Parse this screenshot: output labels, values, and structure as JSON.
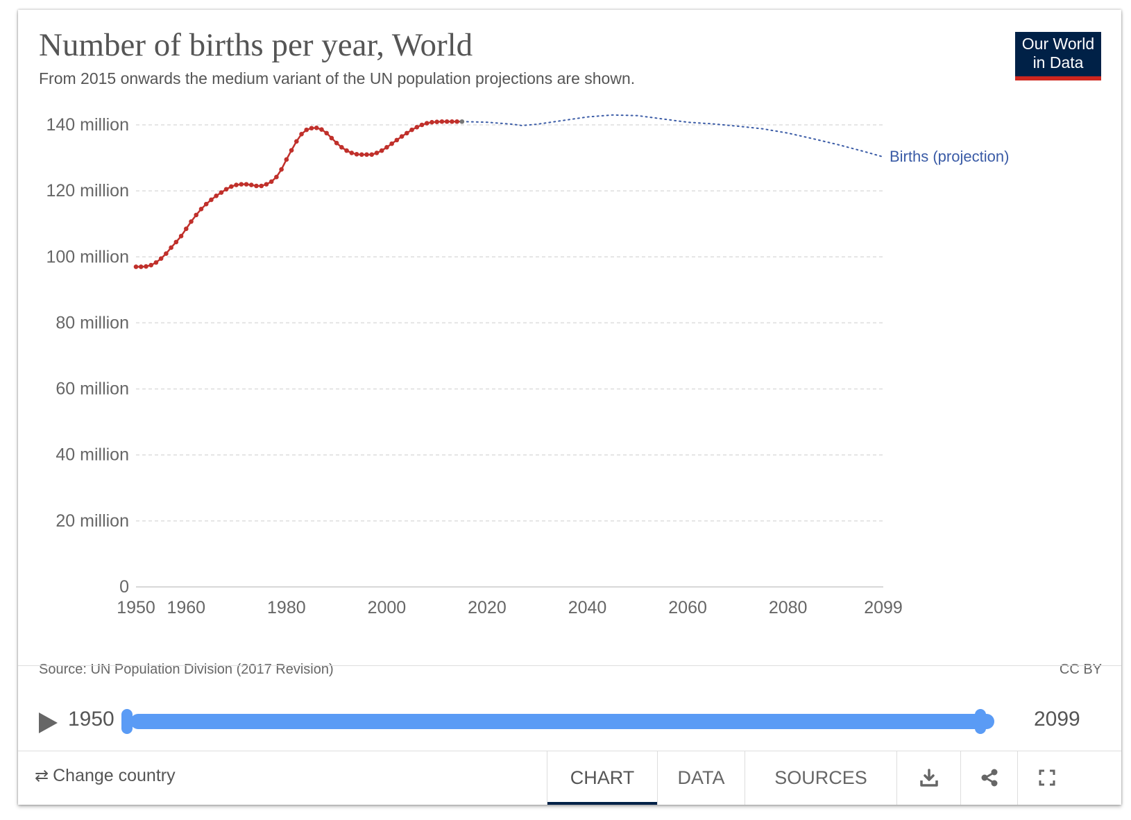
{
  "header": {
    "title": "Number of births per year, World",
    "subtitle": "From 2015 onwards the medium variant of the UN population projections are shown.",
    "logo_text": "Our World\nin Data"
  },
  "footer": {
    "source": "Source: UN Population Division (2017 Revision)",
    "license": "CC BY"
  },
  "timeline": {
    "start_label": "1950",
    "end_label": "2099"
  },
  "controls": {
    "change_country_label": "Change country",
    "tabs": [
      "CHART",
      "DATA",
      "SOURCES"
    ],
    "active_tab": "CHART"
  },
  "colors": {
    "historical": "#c0302b",
    "projection": "#3a5ba6",
    "logo_bg": "#002147",
    "logo_accent": "#ce261e",
    "timeline": "#5a9bf5"
  },
  "icons": [
    "swap-icon",
    "play-icon",
    "download-icon",
    "share-icon",
    "fullscreen-icon"
  ],
  "chart_data": {
    "type": "line",
    "title": "Number of births per year, World",
    "subtitle": "From 2015 onwards the medium variant of the UN population projections are shown.",
    "xlabel": "",
    "ylabel": "",
    "xlim": [
      1950,
      2099
    ],
    "ylim": [
      0,
      140000000
    ],
    "x_ticks": [
      "1950",
      "1960",
      "1980",
      "2000",
      "2020",
      "2040",
      "2060",
      "2080",
      "2099"
    ],
    "y_ticks": [
      "0",
      "20 million",
      "40 million",
      "60 million",
      "80 million",
      "100 million",
      "120 million",
      "140 million"
    ],
    "grid": true,
    "series": [
      {
        "name": "",
        "style": "solid-markers",
        "x": [
          1950,
          1951,
          1952,
          1953,
          1954,
          1955,
          1956,
          1957,
          1958,
          1959,
          1960,
          1961,
          1962,
          1963,
          1964,
          1965,
          1966,
          1967,
          1968,
          1969,
          1970,
          1971,
          1972,
          1973,
          1974,
          1975,
          1976,
          1977,
          1978,
          1979,
          1980,
          1981,
          1982,
          1983,
          1984,
          1985,
          1986,
          1987,
          1988,
          1989,
          1990,
          1991,
          1992,
          1993,
          1994,
          1995,
          1996,
          1997,
          1998,
          1999,
          2000,
          2001,
          2002,
          2003,
          2004,
          2005,
          2006,
          2007,
          2008,
          2009,
          2010,
          2011,
          2012,
          2013,
          2014,
          2015
        ],
        "y": [
          97000000,
          97000000,
          97100000,
          97500000,
          98300000,
          99500000,
          101000000,
          102800000,
          104500000,
          106300000,
          108500000,
          110700000,
          112700000,
          114500000,
          116000000,
          117300000,
          118500000,
          119500000,
          120500000,
          121300000,
          121800000,
          122000000,
          122000000,
          121800000,
          121500000,
          121500000,
          122000000,
          122800000,
          124200000,
          126500000,
          129500000,
          132300000,
          135000000,
          137200000,
          138500000,
          139000000,
          139100000,
          138600000,
          137500000,
          136000000,
          134500000,
          133200000,
          132200000,
          131500000,
          131100000,
          131000000,
          131000000,
          131000000,
          131500000,
          132200000,
          133200000,
          134300000,
          135400000,
          136500000,
          137500000,
          138500000,
          139300000,
          140000000,
          140500000,
          140800000,
          140900000,
          141000000,
          141000000,
          141000000,
          141000000,
          141000000
        ]
      },
      {
        "name": "Births (projection)",
        "style": "dotted",
        "x": [
          2015,
          2020,
          2025,
          2027,
          2030,
          2035,
          2040,
          2045,
          2050,
          2055,
          2060,
          2065,
          2070,
          2075,
          2080,
          2085,
          2090,
          2095,
          2099
        ],
        "y": [
          141000000,
          140800000,
          140200000,
          139800000,
          140200000,
          141300000,
          142400000,
          143000000,
          142800000,
          141800000,
          140800000,
          140300000,
          139600000,
          138800000,
          137500000,
          135800000,
          134000000,
          132000000,
          130300000
        ]
      }
    ]
  }
}
